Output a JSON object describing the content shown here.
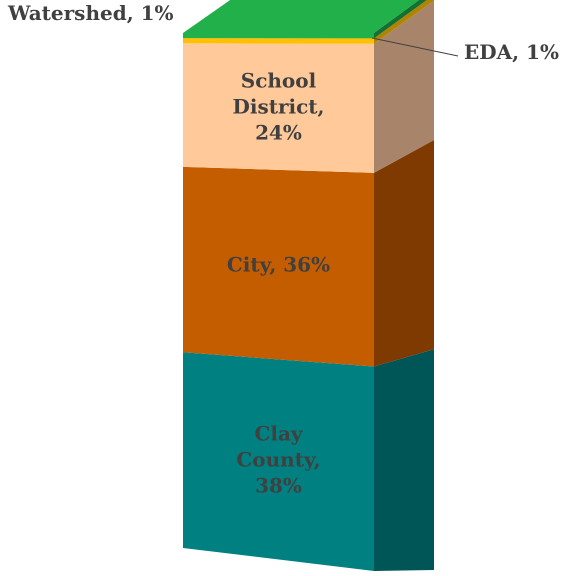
{
  "chart_data": {
    "type": "bar",
    "subtype": "stacked-3d-column",
    "title": "",
    "series": [
      {
        "name": "Clay County",
        "value": 38,
        "label": "Clay County, 38%",
        "label_lines": [
          "Clay",
          "County,",
          "38%"
        ],
        "color": "#008080",
        "side_color": "#005656"
      },
      {
        "name": "City",
        "value": 36,
        "label": "City, 36%",
        "label_lines": [
          "City, 36%"
        ],
        "color": "#C45C00",
        "side_color": "#7E3A00"
      },
      {
        "name": "School District",
        "value": 24,
        "label": "School District, 24%",
        "label_lines": [
          "School",
          "District,",
          "24%"
        ],
        "color": "#FFC99A",
        "side_color": "#A8856A"
      },
      {
        "name": "EDA",
        "value": 1,
        "label": "EDA, 1%",
        "label_lines": [
          "EDA, 1%"
        ],
        "color": "#FFC000",
        "side_color": "#B08400"
      },
      {
        "name": "Watershed",
        "value": 1,
        "label": "Watershed, 1%",
        "label_lines": [
          "Watershed, 1%"
        ],
        "color": "#22B04B",
        "side_color": "#137030"
      }
    ],
    "legend": "none",
    "grid": false
  }
}
